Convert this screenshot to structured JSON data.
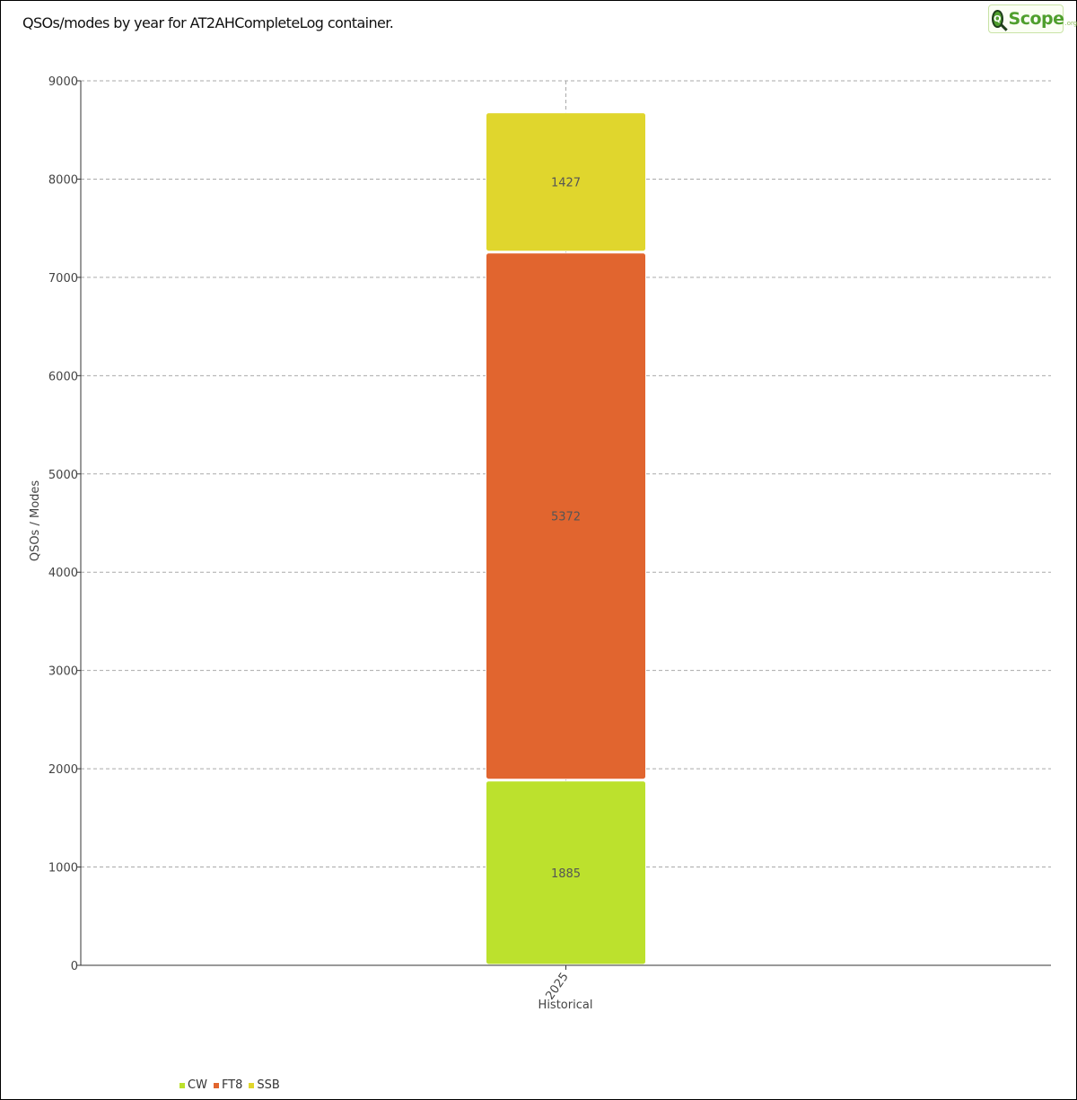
{
  "title": "QSOs/modes by year for AT2AHCompleteLog container.",
  "logo": {
    "text": "Scope",
    "suffix": ".org",
    "mark": "Q"
  },
  "chart_data": {
    "type": "bar",
    "stacked": true,
    "categories": [
      "2025"
    ],
    "xlabel": "Historical",
    "ylabel": "QSOs / Modes",
    "ylim": [
      0,
      9000
    ],
    "yticks": [
      0,
      1000,
      2000,
      3000,
      4000,
      5000,
      6000,
      7000,
      8000,
      9000
    ],
    "grid": true,
    "legend_position": "bottom-left",
    "series": [
      {
        "name": "CW",
        "values": [
          1885
        ],
        "color": "#bce12d"
      },
      {
        "name": "FT8",
        "values": [
          5372
        ],
        "color": "#e1652f"
      },
      {
        "name": "SSB",
        "values": [
          1427
        ],
        "color": "#e0d62d"
      }
    ]
  }
}
